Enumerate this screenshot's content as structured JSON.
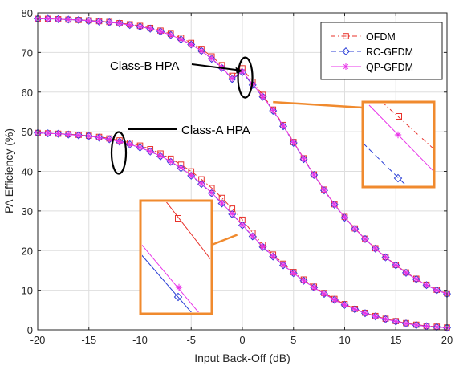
{
  "chart_data": {
    "type": "line",
    "xlabel": "Input Back-Off (dB)",
    "ylabel": "PA Efficiency (%)",
    "xlim": [
      -20,
      20
    ],
    "ylim": [
      0,
      80
    ],
    "xticks": [
      -20,
      -15,
      -10,
      -5,
      0,
      5,
      10,
      15,
      20
    ],
    "yticks": [
      0,
      10,
      20,
      30,
      40,
      50,
      60,
      70,
      80
    ],
    "grid": true,
    "legend_position": "top-right",
    "x": [
      -20,
      -19,
      -18,
      -17,
      -16,
      -15,
      -14,
      -13,
      -12,
      -11,
      -10,
      -9,
      -8,
      -7,
      -6,
      -5,
      -4,
      -3,
      -2,
      -1,
      0,
      1,
      2,
      3,
      4,
      5,
      6,
      7,
      8,
      9,
      10,
      11,
      12,
      13,
      14,
      15,
      16,
      17,
      18,
      19,
      20
    ],
    "series": [
      {
        "name": "OFDM",
        "group": "Class-B HPA",
        "color": "#e8312a",
        "dash": "6,3,1.5,3",
        "marker": "square",
        "values": [
          78.5,
          78.5,
          78.4,
          78.3,
          78.2,
          78.1,
          77.9,
          77.7,
          77.4,
          77.1,
          76.7,
          76.2,
          75.5,
          74.7,
          73.7,
          72.4,
          70.9,
          69.0,
          66.8,
          64.1,
          66.0,
          62.6,
          59.3,
          55.6,
          51.7,
          47.4,
          43.3,
          39.2,
          35.4,
          31.7,
          28.5,
          25.6,
          23.0,
          20.6,
          18.4,
          16.4,
          14.5,
          12.9,
          11.4,
          10.1,
          9.2
        ]
      },
      {
        "name": "RC-GFDM",
        "group": "Class-B HPA",
        "color": "#2b3fd6",
        "dash": "7,4",
        "marker": "diamond",
        "values": [
          78.5,
          78.5,
          78.4,
          78.3,
          78.2,
          78.0,
          77.8,
          77.6,
          77.3,
          76.9,
          76.5,
          76.0,
          75.3,
          74.4,
          73.3,
          72.0,
          70.4,
          68.4,
          66.1,
          63.3,
          65.0,
          61.8,
          58.8,
          55.3,
          51.4,
          47.2,
          43.1,
          39.1,
          35.2,
          31.6,
          28.3,
          25.5,
          22.9,
          20.5,
          18.3,
          16.3,
          14.4,
          12.8,
          11.3,
          10.0,
          9.1
        ]
      },
      {
        "name": "QP-GFDM",
        "group": "Class-B HPA",
        "color": "#e833e8",
        "dash": "",
        "marker": "star",
        "values": [
          78.5,
          78.5,
          78.4,
          78.3,
          78.2,
          78.0,
          77.8,
          77.6,
          77.3,
          76.9,
          76.5,
          76.0,
          75.3,
          74.4,
          73.3,
          72.0,
          70.4,
          68.5,
          66.2,
          63.4,
          65.2,
          62.0,
          58.9,
          55.4,
          51.5,
          47.3,
          43.2,
          39.1,
          35.3,
          31.6,
          28.4,
          25.5,
          22.9,
          20.5,
          18.3,
          16.3,
          14.4,
          12.8,
          11.3,
          10.0,
          9.1
        ]
      },
      {
        "name": "OFDM",
        "group": "Class-A HPA",
        "color": "#e8312a",
        "dash": "6,3,1.5,3",
        "marker": "square",
        "values": [
          49.7,
          49.6,
          49.5,
          49.4,
          49.2,
          49.0,
          48.7,
          48.3,
          47.8,
          47.2,
          46.5,
          45.6,
          44.5,
          43.2,
          41.7,
          40.0,
          38.0,
          35.8,
          33.3,
          30.6,
          27.8,
          24.5,
          21.5,
          19.0,
          16.7,
          14.6,
          12.7,
          10.9,
          9.3,
          7.8,
          6.5,
          5.3,
          4.3,
          3.5,
          2.8,
          2.2,
          1.7,
          1.3,
          1.0,
          0.8,
          0.6
        ]
      },
      {
        "name": "RC-GFDM",
        "group": "Class-A HPA",
        "color": "#2b3fd6",
        "dash": "7,4",
        "marker": "diamond",
        "values": [
          49.7,
          49.6,
          49.5,
          49.3,
          49.1,
          48.9,
          48.5,
          48.1,
          47.5,
          46.8,
          46.0,
          45.0,
          43.8,
          42.4,
          40.8,
          38.9,
          36.8,
          34.5,
          31.9,
          29.2,
          26.4,
          23.6,
          20.9,
          18.5,
          16.3,
          14.3,
          12.4,
          10.7,
          9.1,
          7.6,
          6.3,
          5.2,
          4.2,
          3.4,
          2.7,
          2.1,
          1.6,
          1.2,
          0.9,
          0.7,
          0.5
        ]
      },
      {
        "name": "QP-GFDM",
        "group": "Class-A HPA",
        "color": "#e833e8",
        "dash": "",
        "marker": "star",
        "values": [
          49.7,
          49.6,
          49.5,
          49.3,
          49.1,
          48.9,
          48.5,
          48.1,
          47.5,
          46.8,
          46.0,
          45.0,
          43.9,
          42.5,
          40.9,
          39.0,
          36.9,
          34.6,
          32.0,
          29.3,
          26.5,
          23.7,
          21.0,
          18.6,
          16.4,
          14.3,
          12.4,
          10.7,
          9.1,
          7.6,
          6.3,
          5.2,
          4.2,
          3.4,
          2.7,
          2.1,
          1.6,
          1.2,
          0.9,
          0.7,
          0.5
        ]
      }
    ],
    "legend": [
      "OFDM",
      "RC-GFDM",
      "QP-GFDM"
    ],
    "annotations": [
      {
        "text": "Class-B HPA",
        "target_x": 0.2,
        "target_y": 65.5
      },
      {
        "text": "Class-A HPA",
        "target_x": -12,
        "target_y": 47.5
      }
    ],
    "zoom_insets": [
      {
        "name": "Class-B zoom",
        "at_x": 3.0,
        "at_y": 57.5
      },
      {
        "name": "Class-A zoom",
        "at_x": -0.5,
        "at_y": 24
      }
    ]
  }
}
